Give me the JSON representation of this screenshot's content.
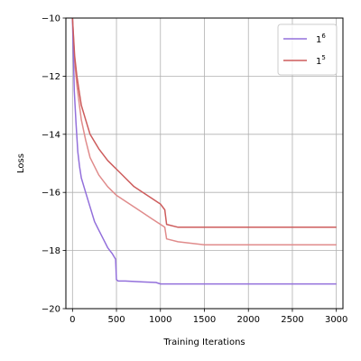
{
  "chart_data": {
    "type": "line",
    "xlabel": "Training Iterations",
    "ylabel": "Loss",
    "xlim": [
      -75,
      3075
    ],
    "ylim": [
      -20,
      -10
    ],
    "xticks": [
      0,
      500,
      1000,
      1500,
      2000,
      2500,
      3000
    ],
    "yticks": [
      -20,
      -18,
      -16,
      -14,
      -12,
      -10
    ],
    "grid": true,
    "legend_position": "top-right",
    "series": [
      {
        "name": "1^6",
        "legend_base": "1",
        "legend_sup": "6",
        "color": "#9370DB",
        "x": [
          0,
          20,
          40,
          60,
          80,
          100,
          150,
          200,
          250,
          300,
          350,
          400,
          450,
          490,
          500,
          520,
          600,
          800,
          950,
          1000,
          1100,
          1500,
          2000,
          2500,
          3000
        ],
        "y": [
          -10.0,
          -12.5,
          -13.6,
          -14.6,
          -15.1,
          -15.5,
          -16.0,
          -16.5,
          -17.0,
          -17.3,
          -17.6,
          -17.9,
          -18.1,
          -18.3,
          -19.0,
          -19.05,
          -19.05,
          -19.08,
          -19.1,
          -19.15,
          -19.15,
          -19.15,
          -19.15,
          -19.15,
          -19.15
        ]
      },
      {
        "name": "1^5",
        "legend_base": "1",
        "legend_sup": "5",
        "color": "#CD5C5C",
        "x": [
          0,
          25,
          50,
          75,
          100,
          150,
          200,
          300,
          400,
          500,
          600,
          700,
          800,
          900,
          1000,
          1050,
          1070,
          1200,
          1500,
          2000,
          2500,
          3000
        ],
        "y": [
          -10.0,
          -11.3,
          -12.0,
          -12.5,
          -13.0,
          -13.5,
          -14.0,
          -14.5,
          -14.9,
          -15.2,
          -15.5,
          -15.8,
          -16.0,
          -16.2,
          -16.4,
          -16.6,
          -17.1,
          -17.2,
          -17.2,
          -17.2,
          -17.2,
          -17.2
        ]
      },
      {
        "name": "",
        "color": "#E08C8C",
        "x": [
          0,
          25,
          50,
          75,
          100,
          150,
          200,
          300,
          400,
          500,
          600,
          700,
          800,
          900,
          1000,
          1050,
          1070,
          1200,
          1500,
          2000,
          2500,
          3000
        ],
        "y": [
          -10.0,
          -11.5,
          -12.3,
          -12.9,
          -13.5,
          -14.2,
          -14.8,
          -15.4,
          -15.8,
          -16.1,
          -16.3,
          -16.5,
          -16.7,
          -16.9,
          -17.1,
          -17.2,
          -17.6,
          -17.7,
          -17.8,
          -17.8,
          -17.8,
          -17.8
        ]
      }
    ]
  }
}
